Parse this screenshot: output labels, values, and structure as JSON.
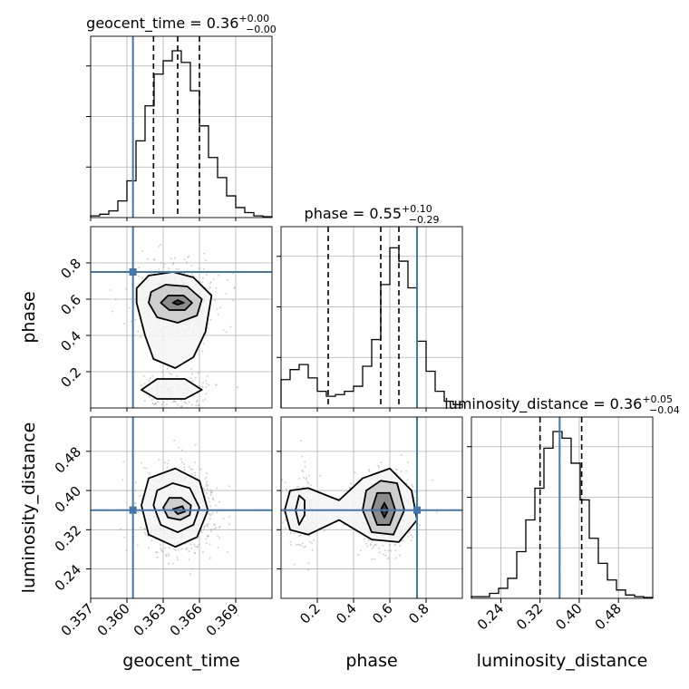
{
  "chart_data": {
    "type": "corner",
    "truth_color": "#4477aa",
    "grid": true,
    "parameters": [
      {
        "name": "geocent_time",
        "truth": 0.3605,
        "quantiles": [
          0.3622,
          0.3642,
          0.366
        ],
        "title": {
          "text": "geocent_time = 0.36",
          "plus": "+0.00",
          "minus": "−0.00"
        },
        "ticks": [
          0.357,
          0.36,
          0.363,
          0.366,
          0.369
        ],
        "tick_labels": [
          "0.357",
          "0.360",
          "0.363",
          "0.366",
          "0.369"
        ],
        "range": [
          0.357,
          0.372
        ],
        "label": "geocent_time"
      },
      {
        "name": "phase",
        "truth": 0.75,
        "quantiles": [
          0.26,
          0.55,
          0.65
        ],
        "title": {
          "text": "phase = 0.55",
          "plus": "+0.10",
          "minus": "−0.29"
        },
        "ticks": [
          0.2,
          0.4,
          0.6,
          0.8
        ],
        "tick_labels": [
          "0.2",
          "0.4",
          "0.6",
          "0.8"
        ],
        "range": [
          0.0,
          1.0
        ],
        "label": "phase"
      },
      {
        "name": "luminosity_distance",
        "truth": 0.36,
        "quantiles": [
          0.32,
          0.36,
          0.405
        ],
        "title": {
          "text": "luminosity_distance = 0.36",
          "plus": "+0.05",
          "minus": "−0.04"
        },
        "ticks": [
          0.24,
          0.32,
          0.4,
          0.48
        ],
        "tick_labels": [
          "0.24",
          "0.32",
          "0.40",
          "0.48"
        ],
        "range": [
          0.18,
          0.55
        ],
        "label": "luminosity_distance"
      }
    ],
    "histograms": {
      "geocent_time": [
        0.01,
        0.02,
        0.04,
        0.1,
        0.22,
        0.46,
        0.67,
        0.86,
        0.94,
        1.0,
        0.93,
        0.76,
        0.55,
        0.36,
        0.24,
        0.13,
        0.06,
        0.03,
        0.01,
        0.005
      ],
      "phase": [
        0.17,
        0.23,
        0.26,
        0.18,
        0.1,
        0.07,
        0.08,
        0.1,
        0.13,
        0.25,
        0.41,
        0.74,
        0.96,
        0.88,
        0.72,
        0.4,
        0.22,
        0.1,
        0.04,
        0.02
      ],
      "luminosity_distance": [
        0.01,
        0.01,
        0.03,
        0.06,
        0.12,
        0.28,
        0.47,
        0.66,
        0.9,
        1.0,
        0.96,
        0.81,
        0.59,
        0.36,
        0.21,
        0.11,
        0.05,
        0.02,
        0.01,
        0.005
      ]
    },
    "contours": {
      "phase_vs_geocent_time": [
        {
          "points": [
            [
              0.3608,
              0.58
            ],
            [
              0.3615,
              0.4
            ],
            [
              0.3622,
              0.27
            ],
            [
              0.364,
              0.22
            ],
            [
              0.3655,
              0.28
            ],
            [
              0.3665,
              0.42
            ],
            [
              0.367,
              0.62
            ],
            [
              0.3655,
              0.72
            ],
            [
              0.3638,
              0.75
            ],
            [
              0.3618,
              0.73
            ],
            [
              0.3608,
              0.66
            ]
          ]
        },
        {
          "points": [
            [
              0.3612,
              0.1
            ],
            [
              0.3625,
              0.05
            ],
            [
              0.3648,
              0.05
            ],
            [
              0.3662,
              0.1
            ],
            [
              0.3648,
              0.16
            ],
            [
              0.3625,
              0.16
            ]
          ]
        },
        {
          "points": [
            [
              0.3618,
              0.58
            ],
            [
              0.3625,
              0.5
            ],
            [
              0.3642,
              0.47
            ],
            [
              0.3658,
              0.51
            ],
            [
              0.3662,
              0.6
            ],
            [
              0.365,
              0.67
            ],
            [
              0.3632,
              0.68
            ],
            [
              0.362,
              0.64
            ]
          ]
        },
        {
          "points": [
            [
              0.3628,
              0.58
            ],
            [
              0.3635,
              0.54
            ],
            [
              0.3648,
              0.54
            ],
            [
              0.3654,
              0.58
            ],
            [
              0.3647,
              0.62
            ],
            [
              0.3634,
              0.62
            ]
          ]
        },
        {
          "points": [
            [
              0.3638,
              0.58
            ],
            [
              0.3642,
              0.57
            ],
            [
              0.3647,
              0.58
            ],
            [
              0.3642,
              0.595
            ]
          ]
        }
      ],
      "luminosity_distance_vs_geocent_time": [
        {
          "points": [
            [
              0.3612,
              0.37
            ],
            [
              0.3618,
              0.31
            ],
            [
              0.364,
              0.285
            ],
            [
              0.3658,
              0.305
            ],
            [
              0.3667,
              0.36
            ],
            [
              0.366,
              0.42
            ],
            [
              0.364,
              0.445
            ],
            [
              0.3618,
              0.425
            ]
          ]
        },
        {
          "points": [
            [
              0.3622,
              0.37
            ],
            [
              0.3628,
              0.33
            ],
            [
              0.3642,
              0.315
            ],
            [
              0.3655,
              0.33
            ],
            [
              0.366,
              0.365
            ],
            [
              0.3652,
              0.405
            ],
            [
              0.3638,
              0.415
            ],
            [
              0.3625,
              0.4
            ]
          ]
        },
        {
          "points": [
            [
              0.363,
              0.365
            ],
            [
              0.3634,
              0.345
            ],
            [
              0.3644,
              0.34
            ],
            [
              0.3652,
              0.35
            ],
            [
              0.3653,
              0.37
            ],
            [
              0.3645,
              0.385
            ],
            [
              0.3635,
              0.385
            ]
          ]
        },
        {
          "points": [
            [
              0.3638,
              0.362
            ],
            [
              0.3642,
              0.352
            ],
            [
              0.3648,
              0.357
            ],
            [
              0.3646,
              0.368
            ]
          ]
        }
      ],
      "luminosity_distance_vs_phase": [
        {
          "points": [
            [
              0.02,
              0.36
            ],
            [
              0.05,
              0.4
            ],
            [
              0.15,
              0.405
            ],
            [
              0.32,
              0.38
            ],
            [
              0.45,
              0.425
            ],
            [
              0.6,
              0.445
            ],
            [
              0.72,
              0.4
            ],
            [
              0.75,
              0.34
            ],
            [
              0.65,
              0.295
            ],
            [
              0.5,
              0.3
            ],
            [
              0.32,
              0.34
            ],
            [
              0.15,
              0.31
            ],
            [
              0.05,
              0.32
            ]
          ]
        },
        {
          "points": [
            [
              0.08,
              0.36
            ],
            [
              0.1,
              0.33
            ],
            [
              0.13,
              0.35
            ],
            [
              0.13,
              0.38
            ],
            [
              0.1,
              0.39
            ]
          ]
        },
        {
          "points": [
            [
              0.45,
              0.36
            ],
            [
              0.5,
              0.315
            ],
            [
              0.62,
              0.31
            ],
            [
              0.68,
              0.36
            ],
            [
              0.64,
              0.415
            ],
            [
              0.55,
              0.42
            ],
            [
              0.47,
              0.4
            ]
          ]
        },
        {
          "points": [
            [
              0.5,
              0.36
            ],
            [
              0.53,
              0.33
            ],
            [
              0.6,
              0.33
            ],
            [
              0.63,
              0.36
            ],
            [
              0.6,
              0.395
            ],
            [
              0.53,
              0.395
            ]
          ]
        },
        {
          "points": [
            [
              0.55,
              0.36
            ],
            [
              0.57,
              0.345
            ],
            [
              0.59,
              0.36
            ],
            [
              0.57,
              0.375
            ]
          ]
        }
      ]
    }
  }
}
